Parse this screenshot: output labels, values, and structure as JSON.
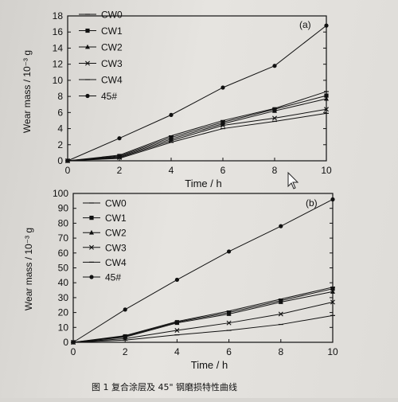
{
  "figure": {
    "caption": "图 1    复合涂层及 45\" 钢磨损特性曲线"
  },
  "chart_data": [
    {
      "type": "line",
      "panel_label": "(a)",
      "xlabel": "Time / h",
      "ylabel": "Wear mass / 10⁻³ g",
      "xlim": [
        0,
        10
      ],
      "ylim": [
        0,
        18
      ],
      "xticks": [
        0,
        2,
        4,
        6,
        8,
        10
      ],
      "yticks": [
        0,
        2,
        4,
        6,
        8,
        10,
        12,
        14,
        16,
        18
      ],
      "legend_position": "top-left",
      "x": [
        0,
        2,
        4,
        6,
        8,
        10
      ],
      "series": [
        {
          "name": "CW0",
          "marker": "line",
          "values": [
            0,
            0.7,
            3.1,
            5.0,
            6.5,
            8.6
          ]
        },
        {
          "name": "CW1",
          "marker": "square",
          "values": [
            0,
            0.6,
            2.9,
            4.8,
            6.4,
            8.1
          ]
        },
        {
          "name": "CW2",
          "marker": "triangle",
          "values": [
            0,
            0.5,
            2.7,
            4.6,
            6.2,
            7.7
          ]
        },
        {
          "name": "CW3",
          "marker": "x",
          "values": [
            0,
            0.4,
            2.5,
            4.4,
            5.3,
            6.4
          ]
        },
        {
          "name": "CW4",
          "marker": "line",
          "values": [
            0,
            0.3,
            2.3,
            4.0,
            4.9,
            5.9
          ]
        },
        {
          "name": "45#",
          "marker": "circle",
          "values": [
            0,
            2.8,
            5.7,
            9.1,
            11.8,
            16.8
          ]
        }
      ]
    },
    {
      "type": "line",
      "panel_label": "(b)",
      "xlabel": "Time / h",
      "ylabel": "Wear mass / 10⁻³ g",
      "xlim": [
        0,
        10
      ],
      "ylim": [
        0,
        100
      ],
      "xticks": [
        0,
        2,
        4,
        6,
        8,
        10
      ],
      "yticks": [
        0,
        10,
        20,
        30,
        40,
        50,
        60,
        70,
        80,
        90,
        100
      ],
      "legend_position": "top-left",
      "x": [
        0,
        2,
        4,
        6,
        8,
        10
      ],
      "series": [
        {
          "name": "CW0",
          "marker": "line",
          "values": [
            0,
            4.5,
            14,
            21,
            29,
            37
          ]
        },
        {
          "name": "CW1",
          "marker": "square",
          "values": [
            0,
            4,
            13.5,
            20,
            28,
            36
          ]
        },
        {
          "name": "CW2",
          "marker": "triangle",
          "values": [
            0,
            3.5,
            13,
            19,
            27,
            34
          ]
        },
        {
          "name": "CW3",
          "marker": "x",
          "values": [
            0,
            2.5,
            8,
            13,
            19,
            27
          ]
        },
        {
          "name": "CW4",
          "marker": "line",
          "values": [
            0,
            1.5,
            5,
            8,
            12,
            18
          ]
        },
        {
          "name": "45#",
          "marker": "circle",
          "values": [
            0,
            22,
            42,
            61,
            78,
            96
          ]
        }
      ]
    }
  ]
}
